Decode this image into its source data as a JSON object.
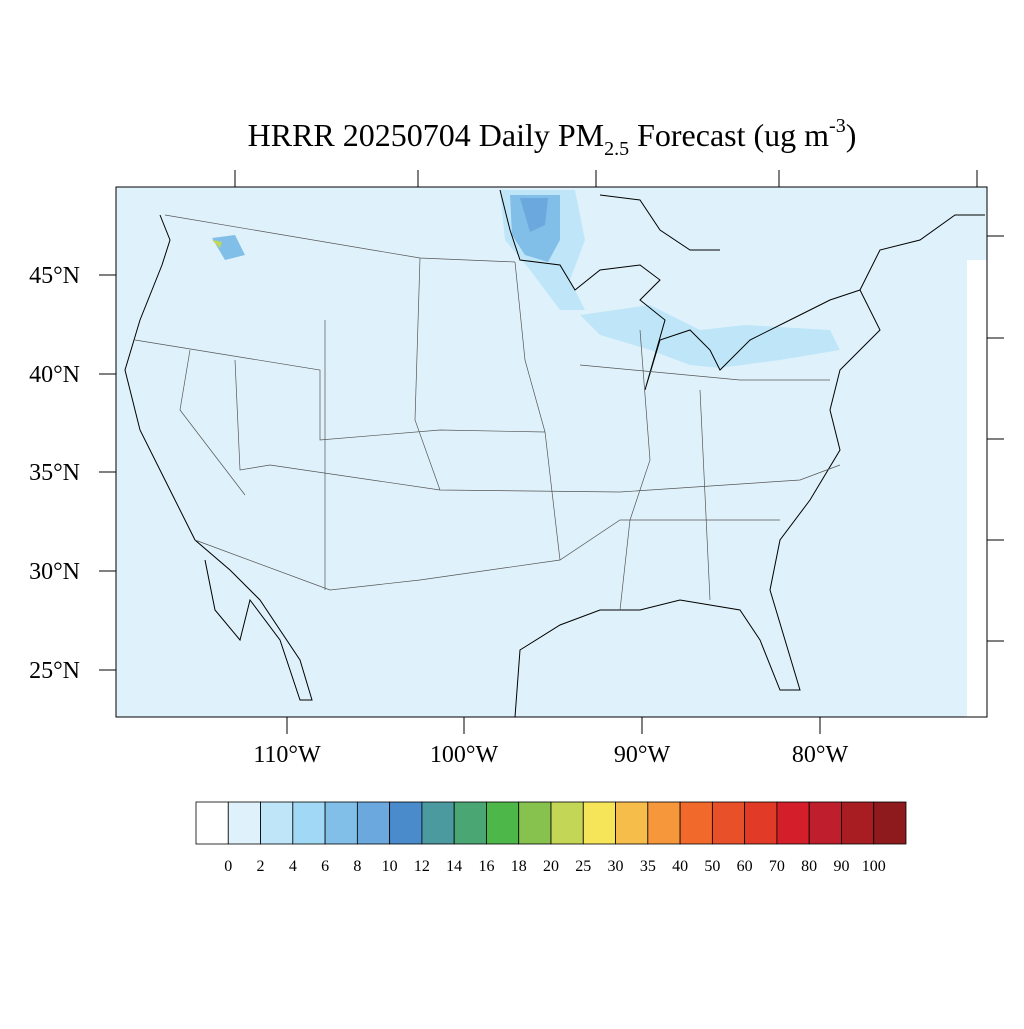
{
  "title": {
    "parts": [
      "HRRR 20250704 Daily PM",
      "2.5",
      " Forecast (ug m",
      "-3",
      ")"
    ]
  },
  "map": {
    "lat_labels": [
      "45°N",
      "40°N",
      "35°N",
      "30°N",
      "25°N"
    ],
    "lon_labels": [
      "110°W",
      "100°W",
      "90°W",
      "80°W"
    ]
  },
  "colorbar": {
    "colors": [
      "#ffffff",
      "#dff2fb",
      "#bfe6f8",
      "#a1d8f5",
      "#82bfe8",
      "#6aa8dd",
      "#4a8bcb",
      "#4b9a9f",
      "#4aa673",
      "#4db849",
      "#86c24d",
      "#c4d656",
      "#f7e559",
      "#f7bd4b",
      "#f6973b",
      "#f26a2b",
      "#e8502a",
      "#e13a26",
      "#d41f2a",
      "#bf1e2c",
      "#a71d22",
      "#8e1a1e"
    ],
    "labels": [
      0,
      2,
      4,
      6,
      8,
      10,
      12,
      14,
      16,
      18,
      20,
      25,
      30,
      35,
      40,
      50,
      60,
      70,
      80,
      90,
      100
    ]
  }
}
